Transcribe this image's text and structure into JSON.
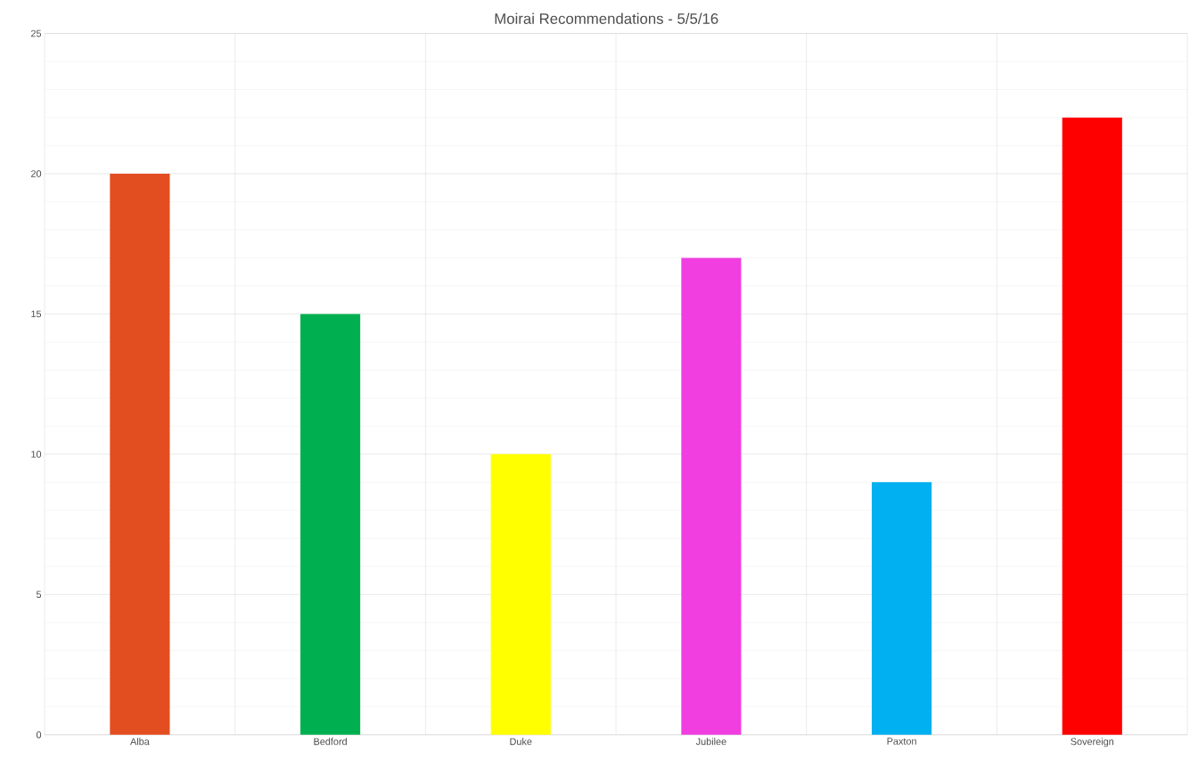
{
  "chart_data": {
    "type": "bar",
    "title": "Moirai Recommendations  - 5/5/16",
    "categories": [
      "Alba",
      "Bedford",
      "Duke",
      "Jubilee",
      "Paxton",
      "Sovereign"
    ],
    "values": [
      20,
      15,
      10,
      17,
      9,
      22
    ],
    "colors": [
      "#e34e20",
      "#00b050",
      "#ffff00",
      "#f03ee0",
      "#00b0f0",
      "#ff0000"
    ],
    "ylim": [
      0,
      25
    ],
    "yticks": [
      0,
      5,
      10,
      15,
      20,
      25
    ],
    "grid": true
  }
}
